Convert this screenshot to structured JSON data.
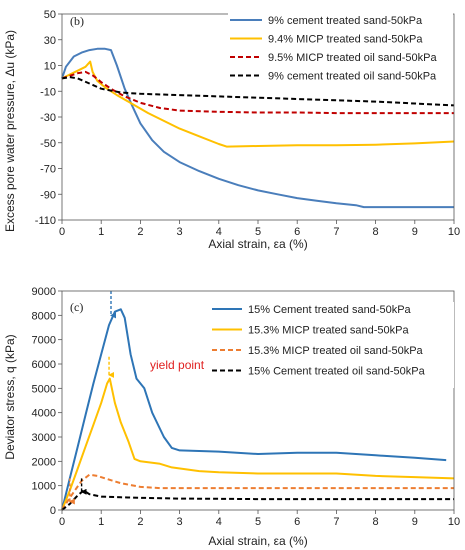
{
  "chart_data": [
    {
      "type": "line",
      "panel_label": "(b)",
      "xlabel": "Axial strain, εa (%)",
      "ylabel": "Excess pore water pressure, Δu (kPa)",
      "xlim": [
        0,
        10
      ],
      "ylim": [
        -110,
        50
      ],
      "xticks": [
        0,
        1,
        2,
        3,
        4,
        5,
        6,
        7,
        8,
        9,
        10
      ],
      "yticks": [
        -110,
        -90,
        -70,
        -50,
        -30,
        -10,
        10,
        30,
        50
      ],
      "legend_position": "top-right",
      "series": [
        {
          "name": "9% cement treated sand-50kPa",
          "color": "#4a7ebb",
          "style": "solid",
          "points": [
            [
              0,
              0
            ],
            [
              0.1,
              9
            ],
            [
              0.3,
              17
            ],
            [
              0.5,
              20
            ],
            [
              0.7,
              22
            ],
            [
              0.9,
              23
            ],
            [
              1.1,
              23
            ],
            [
              1.25,
              22
            ],
            [
              1.4,
              10
            ],
            [
              1.6,
              -8
            ],
            [
              1.8,
              -22
            ],
            [
              2.0,
              -35
            ],
            [
              2.3,
              -48
            ],
            [
              2.6,
              -57
            ],
            [
              3.0,
              -65
            ],
            [
              3.5,
              -72
            ],
            [
              4.0,
              -78
            ],
            [
              4.5,
              -83
            ],
            [
              5.0,
              -87
            ],
            [
              5.5,
              -90
            ],
            [
              6.0,
              -93
            ],
            [
              6.5,
              -95
            ],
            [
              7.0,
              -97
            ],
            [
              7.5,
              -98.5
            ],
            [
              7.7,
              -100
            ],
            [
              8.0,
              -100
            ],
            [
              9.0,
              -100
            ],
            [
              10.0,
              -100
            ]
          ]
        },
        {
          "name": "9.4% MICP treated  sand-50kPa",
          "color": "#ffc000",
          "style": "solid",
          "points": [
            [
              0,
              0
            ],
            [
              0.2,
              3
            ],
            [
              0.4,
              6
            ],
            [
              0.6,
              9
            ],
            [
              0.72,
              13
            ],
            [
              0.78,
              5
            ],
            [
              0.9,
              -2
            ],
            [
              1.1,
              -7
            ],
            [
              1.4,
              -13
            ],
            [
              1.8,
              -20
            ],
            [
              2.2,
              -27
            ],
            [
              2.6,
              -33
            ],
            [
              3.0,
              -39
            ],
            [
              3.5,
              -45
            ],
            [
              4.0,
              -51
            ],
            [
              4.2,
              -53
            ],
            [
              5.0,
              -52.5
            ],
            [
              6.0,
              -52
            ],
            [
              7.0,
              -52
            ],
            [
              8.0,
              -51.5
            ],
            [
              9.0,
              -50.5
            ],
            [
              10.0,
              -49
            ]
          ]
        },
        {
          "name": "9.5% MICP treated oil sand-50kPa",
          "color": "#c00000",
          "style": "dashed",
          "points": [
            [
              0,
              0
            ],
            [
              0.2,
              2
            ],
            [
              0.4,
              4
            ],
            [
              0.6,
              5
            ],
            [
              0.8,
              2
            ],
            [
              1.0,
              -3
            ],
            [
              1.3,
              -9
            ],
            [
              1.6,
              -14
            ],
            [
              2.0,
              -19
            ],
            [
              2.5,
              -23
            ],
            [
              3.0,
              -25
            ],
            [
              4.0,
              -26
            ],
            [
              5.0,
              -26.5
            ],
            [
              6.0,
              -26.5
            ],
            [
              7.0,
              -27
            ],
            [
              8.0,
              -27
            ],
            [
              10.0,
              -27
            ]
          ]
        },
        {
          "name": "9% cement treated oil sand-50kPa",
          "color": "#000000",
          "style": "dashed",
          "points": [
            [
              0,
              0
            ],
            [
              0.2,
              1
            ],
            [
              0.4,
              0
            ],
            [
              0.7,
              -4
            ],
            [
              1.0,
              -8
            ],
            [
              1.5,
              -11
            ],
            [
              2.0,
              -12
            ],
            [
              3.0,
              -13
            ],
            [
              4.0,
              -14
            ],
            [
              5.0,
              -15
            ],
            [
              6.0,
              -16
            ],
            [
              7.0,
              -17
            ],
            [
              8.0,
              -18
            ],
            [
              9.0,
              -19.5
            ],
            [
              10.0,
              -21
            ]
          ]
        }
      ]
    },
    {
      "type": "line",
      "panel_label": "(c)",
      "xlabel": "Axial strain, εa (%)",
      "ylabel": "Deviator stress, q (kPa)",
      "xlim": [
        0,
        10
      ],
      "ylim": [
        0,
        9000
      ],
      "xticks": [
        0,
        1,
        2,
        3,
        4,
        5,
        6,
        7,
        8,
        9,
        10
      ],
      "yticks": [
        0,
        1000,
        2000,
        3000,
        4000,
        5000,
        6000,
        7000,
        8000,
        9000
      ],
      "legend_position": "top-right",
      "annotation": "yield point",
      "annotation_color": "#e02020",
      "series": [
        {
          "name": "15% Cement treated sand-50kPa",
          "color": "#2e75b6",
          "style": "solid",
          "points": [
            [
              0,
              0
            ],
            [
              0.2,
              1300
            ],
            [
              0.4,
              2600
            ],
            [
              0.6,
              3900
            ],
            [
              0.8,
              5200
            ],
            [
              1.0,
              6400
            ],
            [
              1.2,
              7600
            ],
            [
              1.35,
              8150
            ],
            [
              1.5,
              8250
            ],
            [
              1.6,
              7900
            ],
            [
              1.75,
              6400
            ],
            [
              1.9,
              5400
            ],
            [
              2.1,
              5000
            ],
            [
              2.3,
              4000
            ],
            [
              2.6,
              3000
            ],
            [
              2.8,
              2550
            ],
            [
              3.0,
              2450
            ],
            [
              4.0,
              2400
            ],
            [
              5.0,
              2300
            ],
            [
              6.0,
              2350
            ],
            [
              7.0,
              2350
            ],
            [
              8.0,
              2250
            ],
            [
              9.0,
              2150
            ],
            [
              9.8,
              2050
            ]
          ]
        },
        {
          "name": "15.3% MICP treated sand-50kPa",
          "color": "#ffc000",
          "style": "solid",
          "points": [
            [
              0,
              0
            ],
            [
              0.2,
              800
            ],
            [
              0.4,
              1700
            ],
            [
              0.6,
              2600
            ],
            [
              0.8,
              3500
            ],
            [
              1.0,
              4400
            ],
            [
              1.15,
              5200
            ],
            [
              1.22,
              5400
            ],
            [
              1.35,
              4400
            ],
            [
              1.5,
              3600
            ],
            [
              1.7,
              2800
            ],
            [
              1.85,
              2100
            ],
            [
              2.0,
              2000
            ],
            [
              2.5,
              1900
            ],
            [
              2.8,
              1750
            ],
            [
              3.5,
              1600
            ],
            [
              4.0,
              1550
            ],
            [
              5.0,
              1500
            ],
            [
              6.0,
              1500
            ],
            [
              7.0,
              1500
            ],
            [
              8.0,
              1400
            ],
            [
              9.0,
              1350
            ],
            [
              10.0,
              1300
            ]
          ]
        },
        {
          "name": "15.3% MICP treated oil sand-50kPa",
          "color": "#ed7d31",
          "style": "dashed",
          "points": [
            [
              0,
              0
            ],
            [
              0.2,
              500
            ],
            [
              0.5,
              1200
            ],
            [
              0.7,
              1450
            ],
            [
              0.9,
              1400
            ],
            [
              1.1,
              1300
            ],
            [
              1.5,
              1100
            ],
            [
              2.0,
              950
            ],
            [
              2.5,
              900
            ],
            [
              3.0,
              900
            ],
            [
              4.0,
              900
            ],
            [
              5.0,
              900
            ],
            [
              6.0,
              900
            ],
            [
              7.0,
              900
            ],
            [
              8.0,
              900
            ],
            [
              9.0,
              900
            ],
            [
              10.0,
              900
            ]
          ]
        },
        {
          "name": "15% Cement treated oil sand-50kPa",
          "color": "#000000",
          "style": "dashed",
          "points": [
            [
              0,
              0
            ],
            [
              0.2,
              250
            ],
            [
              0.4,
              600
            ],
            [
              0.55,
              800
            ],
            [
              0.7,
              650
            ],
            [
              1.0,
              550
            ],
            [
              1.5,
              520
            ],
            [
              2.0,
              500
            ],
            [
              3.0,
              470
            ],
            [
              4.0,
              460
            ],
            [
              5.0,
              450
            ],
            [
              6.0,
              450
            ],
            [
              7.0,
              450
            ],
            [
              8.0,
              450
            ],
            [
              9.0,
              450
            ],
            [
              10.0,
              450
            ]
          ]
        }
      ],
      "arrows": [
        {
          "color": "#2e75b6",
          "x": 1.25,
          "y_from": 9000,
          "y_to": 8000
        },
        {
          "color": "#ffc000",
          "x": 1.2,
          "y_from": 6300,
          "y_to": 5550
        },
        {
          "color": "#ed7d31",
          "x": 0.2,
          "y_from": 1300,
          "y_to": 350
        },
        {
          "color": "#000000",
          "x": 0.5,
          "y_from": 1300,
          "y_to": 750
        }
      ]
    }
  ]
}
